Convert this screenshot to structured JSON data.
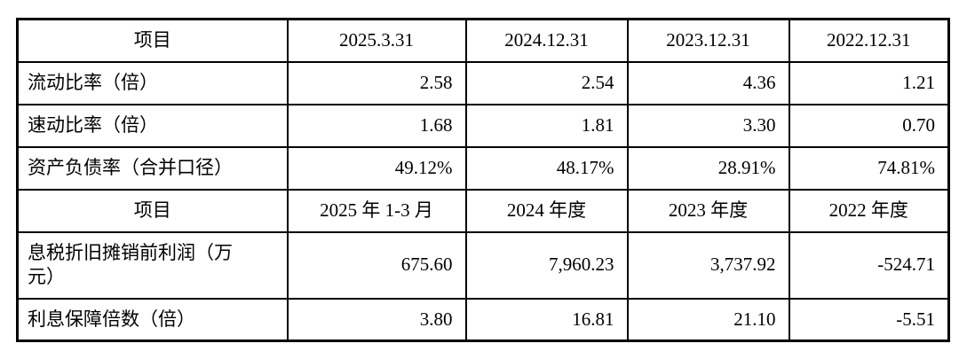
{
  "table": {
    "section1": {
      "header": [
        "项目",
        "2025.3.31",
        "2024.12.31",
        "2023.12.31",
        "2022.12.31"
      ],
      "rows": [
        {
          "label": "流动比率（倍）",
          "values": [
            "2.58",
            "2.54",
            "4.36",
            "1.21"
          ]
        },
        {
          "label": "速动比率（倍）",
          "values": [
            "1.68",
            "1.81",
            "3.30",
            "0.70"
          ]
        },
        {
          "label": "资产负债率（合并口径）",
          "values": [
            "49.12%",
            "48.17%",
            "28.91%",
            "74.81%"
          ]
        }
      ]
    },
    "section2": {
      "header": [
        "项目",
        "2025 年 1-3 月",
        "2024 年度",
        "2023 年度",
        "2022 年度"
      ],
      "rows": [
        {
          "label": "息税折旧摊销前利润（万元）",
          "label_lines": [
            "息税折旧摊销前利润（万",
            "元）"
          ],
          "values": [
            "675.60",
            "7,960.23",
            "3,737.92",
            "-524.71"
          ]
        },
        {
          "label": "利息保障倍数（倍）",
          "values": [
            "3.80",
            "16.81",
            "21.10",
            "-5.51"
          ]
        }
      ]
    }
  },
  "colors": {
    "border": "#000000",
    "text": "#000000",
    "background": "#ffffff"
  }
}
